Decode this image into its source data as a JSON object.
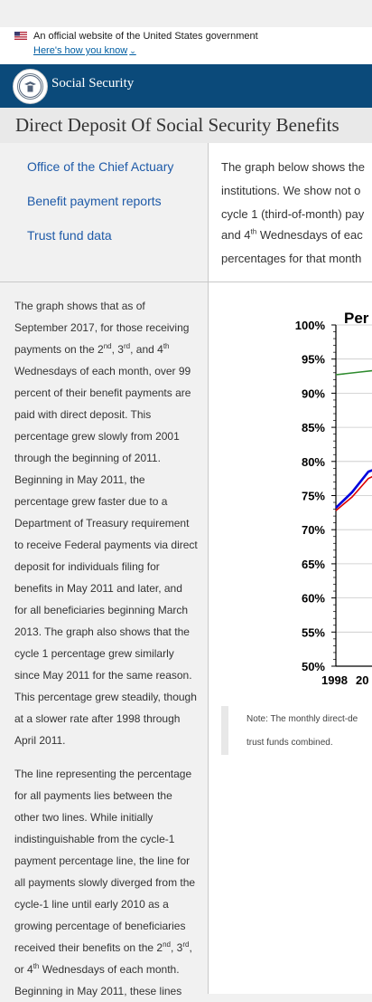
{
  "gov_banner": {
    "text": "An official website of the United States government",
    "link": "Here's how you know"
  },
  "nav": {
    "site_name": "Social Security"
  },
  "page": {
    "title": "Direct Deposit Of Social Security Benefits"
  },
  "sidebar": {
    "items": [
      {
        "label": "Office of the Chief Actuary"
      },
      {
        "label": "Benefit payment reports"
      },
      {
        "label": "Trust fund data"
      }
    ]
  },
  "intro": {
    "lines": [
      "The graph below shows the",
      "institutions. We show not o",
      "cycle 1 (third-of-month) pay",
      "and 4",
      "th",
      " Wednesdays of eac",
      "percentages for that month"
    ]
  },
  "description": {
    "p1": {
      "l1": "The graph shows that as of",
      "l2": "September 2017, for those receiving",
      "l3a": "payments on the 2",
      "l3b": "nd",
      "l3c": ", 3",
      "l3d": "rd",
      "l3e": ", and 4",
      "l3f": "th",
      "l4": "Wednesdays of each month, over 99",
      "l5": "percent of their benefit payments are",
      "l6": "paid with direct deposit. This",
      "l7": "percentage grew slowly from 2001",
      "l8": "through the beginning of 2011.",
      "l9": "Beginning in May 2011, the",
      "l10": "percentage grew faster due to a",
      "l11": "Department of Treasury requirement",
      "l12": "to receive Federal payments via direct",
      "l13": "deposit for individuals filing for",
      "l14": "benefits in May 2011 and later, and",
      "l15": "for all beneficiaries beginning March",
      "l16": "2013. The graph also shows that the",
      "l17": "cycle 1 percentage grew similarly",
      "l18": "since May 2011 for the same reason.",
      "l19": "This percentage grew steadily, though",
      "l20": "at a slower rate after 1998 through",
      "l21": "April 2011."
    },
    "p2": {
      "l1": "The line representing the percentage",
      "l2": "for all payments lies between the",
      "l3": "other two lines. While initially",
      "l4": "indistinguishable from the cycle-1",
      "l5": "payment percentage line, the line for",
      "l6": "all payments slowly diverged from the",
      "l7": "cycle-1 line until early 2010 as a",
      "l8": "growing percentage of beneficiaries",
      "l9a": "received their benefits on the 2",
      "l9b": "nd",
      "l9c": ", 3",
      "l9d": "rd",
      "l9e": ",",
      "l10a": "or 4",
      "l10b": "th",
      "l10c": " Wednesdays of each month.",
      "l11": "Beginning in May 2011, these lines"
    }
  },
  "chart_data": {
    "type": "line",
    "title": "Per",
    "ylim": [
      50,
      100
    ],
    "yticks": [
      "100%",
      "95%",
      "90%",
      "85%",
      "80%",
      "75%",
      "70%",
      "65%",
      "60%",
      "55%",
      "50%"
    ],
    "xticks": [
      "1998",
      "20"
    ],
    "series": [
      {
        "color": "#2e8b2e",
        "x": [
          1998.0,
          1998.3,
          1998.6,
          1998.9,
          1999.2,
          1999.5,
          1999.8,
          2000.1,
          2000.5
        ],
        "y": [
          92.7,
          92.9,
          93.1,
          93.3,
          93.2,
          92.6,
          91.8,
          91.2,
          90.6
        ]
      },
      {
        "color": "#0000dd",
        "x": [
          1998.0,
          1998.4,
          1998.8,
          1999.2,
          1999.6,
          2000.0,
          2000.5
        ],
        "y": [
          73.2,
          75.5,
          78.5,
          79.4,
          79.8,
          80.2,
          80.6
        ]
      },
      {
        "color": "#dd0000",
        "x": [
          1998.0,
          1998.4,
          1998.8,
          1999.2,
          1999.6,
          2000.0,
          2000.5
        ],
        "y": [
          72.8,
          74.8,
          77.5,
          78.6,
          79.0,
          79.3,
          79.6
        ]
      }
    ],
    "colors": {
      "cycle1": "#2e8b2e",
      "all": "#0000dd",
      "other": "#dd0000"
    }
  },
  "note": {
    "l1": "Note: The monthly direct-de",
    "l2": "trust funds combined."
  }
}
